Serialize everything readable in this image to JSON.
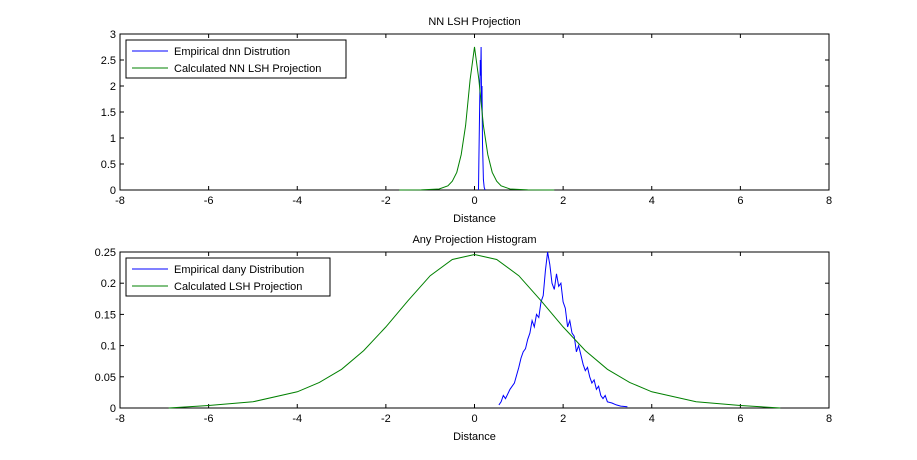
{
  "chart_data": [
    {
      "type": "line",
      "title": "NN LSH Projection",
      "xlabel": "Distance",
      "ylabel": "",
      "xlim": [
        -8,
        8
      ],
      "ylim": [
        0,
        3
      ],
      "xticks": [
        -8,
        -6,
        -4,
        -2,
        0,
        2,
        4,
        6,
        8
      ],
      "yticks": [
        0,
        0.5,
        1,
        1.5,
        2,
        2.5,
        3
      ],
      "ytick_labels": [
        "0",
        "0.5",
        "1",
        "1.5",
        "2",
        "2.5",
        "3"
      ],
      "legend": "top-left",
      "grid": false,
      "series": [
        {
          "name": "Empirical dnn Distrution",
          "color": "#0000ff",
          "x": [
            0.09,
            0.1,
            0.12,
            0.13,
            0.14,
            0.15,
            0.16,
            0.17,
            0.18,
            0.19,
            0.2,
            0.22,
            0.24
          ],
          "y": [
            0,
            0.6,
            1.8,
            2.5,
            2.2,
            2.75,
            1.6,
            2.0,
            0.9,
            0.6,
            0.2,
            0.05,
            0
          ]
        },
        {
          "name": "Calculated NN LSH Projection",
          "color": "#008000",
          "x": [
            -1.7,
            -1.2,
            -0.8,
            -0.6,
            -0.5,
            -0.4,
            -0.3,
            -0.2,
            -0.1,
            0,
            0.1,
            0.2,
            0.3,
            0.4,
            0.5,
            0.6,
            0.8,
            1.2,
            1.8
          ],
          "y": [
            0,
            0.002,
            0.02,
            0.08,
            0.17,
            0.34,
            0.68,
            1.24,
            2.12,
            2.75,
            2.12,
            1.24,
            0.68,
            0.34,
            0.17,
            0.08,
            0.02,
            0.002,
            0
          ]
        }
      ]
    },
    {
      "type": "line",
      "title": "Any Projection Histogram",
      "xlabel": "Distance",
      "ylabel": "",
      "xlim": [
        -8,
        8
      ],
      "ylim": [
        0,
        0.25
      ],
      "xticks": [
        -8,
        -6,
        -4,
        -2,
        0,
        2,
        4,
        6,
        8
      ],
      "yticks": [
        0,
        0.05,
        0.1,
        0.15,
        0.2,
        0.25
      ],
      "ytick_labels": [
        "0",
        "0.05",
        "0.1",
        "0.15",
        "0.2",
        "0.25"
      ],
      "legend": "top-left",
      "grid": false,
      "series": [
        {
          "name": "Empirical dany Distribution",
          "color": "#0000ff",
          "x": [
            0.55,
            0.6,
            0.65,
            0.7,
            0.8,
            0.9,
            1.0,
            1.05,
            1.1,
            1.15,
            1.2,
            1.25,
            1.3,
            1.35,
            1.4,
            1.45,
            1.5,
            1.55,
            1.6,
            1.65,
            1.7,
            1.75,
            1.8,
            1.85,
            1.9,
            1.95,
            2.0,
            2.05,
            2.1,
            2.15,
            2.2,
            2.25,
            2.3,
            2.35,
            2.4,
            2.45,
            2.5,
            2.55,
            2.6,
            2.65,
            2.7,
            2.75,
            2.8,
            2.85,
            2.9,
            2.95,
            3.0,
            3.1,
            3.2,
            3.3,
            3.45
          ],
          "y": [
            0.005,
            0.01,
            0.02,
            0.015,
            0.03,
            0.04,
            0.065,
            0.08,
            0.09,
            0.095,
            0.11,
            0.12,
            0.14,
            0.13,
            0.15,
            0.145,
            0.17,
            0.18,
            0.22,
            0.25,
            0.23,
            0.2,
            0.19,
            0.215,
            0.195,
            0.2,
            0.17,
            0.16,
            0.13,
            0.14,
            0.12,
            0.115,
            0.09,
            0.1,
            0.085,
            0.07,
            0.06,
            0.065,
            0.05,
            0.04,
            0.045,
            0.03,
            0.035,
            0.02,
            0.015,
            0.02,
            0.01,
            0.008,
            0.005,
            0.003,
            0.002
          ]
        },
        {
          "name": "Calculated LSH Projection",
          "color": "#008000",
          "x": [
            -6.9,
            -6.0,
            -5.0,
            -4.0,
            -3.5,
            -3.0,
            -2.5,
            -2.0,
            -1.5,
            -1.0,
            -0.5,
            0,
            0.5,
            1.0,
            1.5,
            2.0,
            2.5,
            3.0,
            3.5,
            4.0,
            5.0,
            6.0,
            6.9
          ],
          "y": [
            0,
            0.004,
            0.01,
            0.026,
            0.041,
            0.062,
            0.092,
            0.13,
            0.172,
            0.212,
            0.238,
            0.246,
            0.238,
            0.212,
            0.172,
            0.13,
            0.092,
            0.062,
            0.041,
            0.026,
            0.01,
            0.004,
            0
          ]
        }
      ]
    }
  ]
}
